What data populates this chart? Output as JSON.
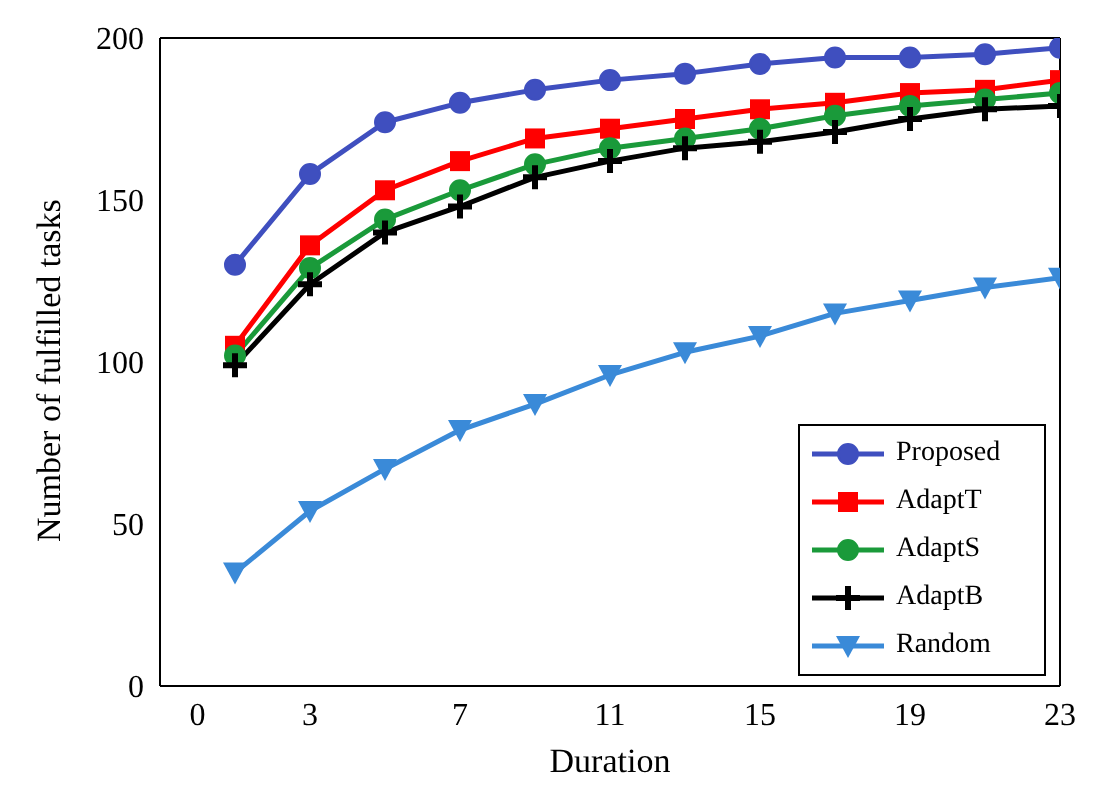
{
  "chart_data": {
    "type": "line",
    "xlabel": "Duration",
    "ylabel": "Number of fulfilled tasks",
    "x": [
      1,
      3,
      5,
      7,
      9,
      11,
      13,
      15,
      17,
      19,
      21,
      23
    ],
    "xlim": [
      -1,
      23
    ],
    "xticks": [
      0,
      3,
      7,
      11,
      15,
      19,
      23
    ],
    "ylim": [
      0,
      200
    ],
    "yticks": [
      0,
      50,
      100,
      150,
      200
    ],
    "legend": "bottom right",
    "grid": false,
    "line_style": "solid",
    "series": [
      {
        "name": "Proposed",
        "color": "#3f4fbf",
        "marker": "circle",
        "values": [
          130,
          158,
          174,
          180,
          184,
          187,
          189,
          192,
          194,
          194,
          195,
          197
        ]
      },
      {
        "name": "AdaptT",
        "color": "#ff0000",
        "marker": "square",
        "values": [
          105,
          136,
          153,
          162,
          169,
          172,
          175,
          178,
          180,
          183,
          184,
          187
        ]
      },
      {
        "name": "AdaptS",
        "color": "#1a9a3a",
        "marker": "circle",
        "values": [
          102,
          129,
          144,
          153,
          161,
          166,
          169,
          172,
          176,
          179,
          181,
          183
        ]
      },
      {
        "name": "AdaptB",
        "color": "#000000",
        "marker": "cross",
        "values": [
          99,
          124,
          140,
          148,
          157,
          162,
          166,
          168,
          171,
          175,
          178,
          179
        ]
      },
      {
        "name": "Random",
        "color": "#3a8ad8",
        "marker": "triangle",
        "values": [
          35,
          54,
          67,
          79,
          87,
          96,
          103,
          108,
          115,
          119,
          123,
          126
        ]
      }
    ]
  }
}
